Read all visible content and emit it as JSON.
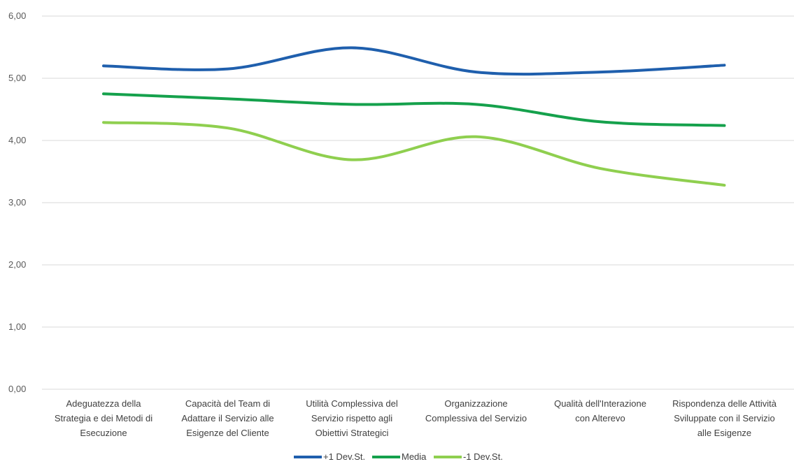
{
  "chart_data": {
    "type": "line",
    "smooth": true,
    "ylim": [
      0,
      6
    ],
    "yticks": [
      "0,00",
      "1,00",
      "2,00",
      "3,00",
      "4,00",
      "5,00",
      "6,00"
    ],
    "grid": true,
    "legend_position": "bottom",
    "categories": [
      [
        "Adeguatezza della",
        "Strategia e dei Metodi di",
        "Esecuzione"
      ],
      [
        "Capacità del Team di",
        "Adattare il Servizio alle",
        "Esigenze del Cliente"
      ],
      [
        "Utilità Complessiva del",
        "Servizio rispetto agli",
        "Obiettivi Strategici"
      ],
      [
        "Organizzazione",
        "Complessiva del Servizio"
      ],
      [
        "Qualità dell'Interazione",
        "con Alterevo"
      ],
      [
        "Rispondenza delle Attività",
        "Sviluppate con il Servizio",
        "alle Esigenze"
      ]
    ],
    "series": [
      {
        "name": "+1 Dev.St.",
        "color": "#1f5fad",
        "values": [
          5.2,
          5.15,
          5.49,
          5.1,
          5.1,
          5.21
        ]
      },
      {
        "name": "Media",
        "color": "#15a14c",
        "values": [
          4.75,
          4.67,
          4.58,
          4.58,
          4.3,
          4.24
        ]
      },
      {
        "name": "-1 Dev.St.",
        "color": "#8fcf4f",
        "values": [
          4.29,
          4.2,
          3.69,
          4.06,
          3.55,
          3.28
        ]
      }
    ]
  }
}
